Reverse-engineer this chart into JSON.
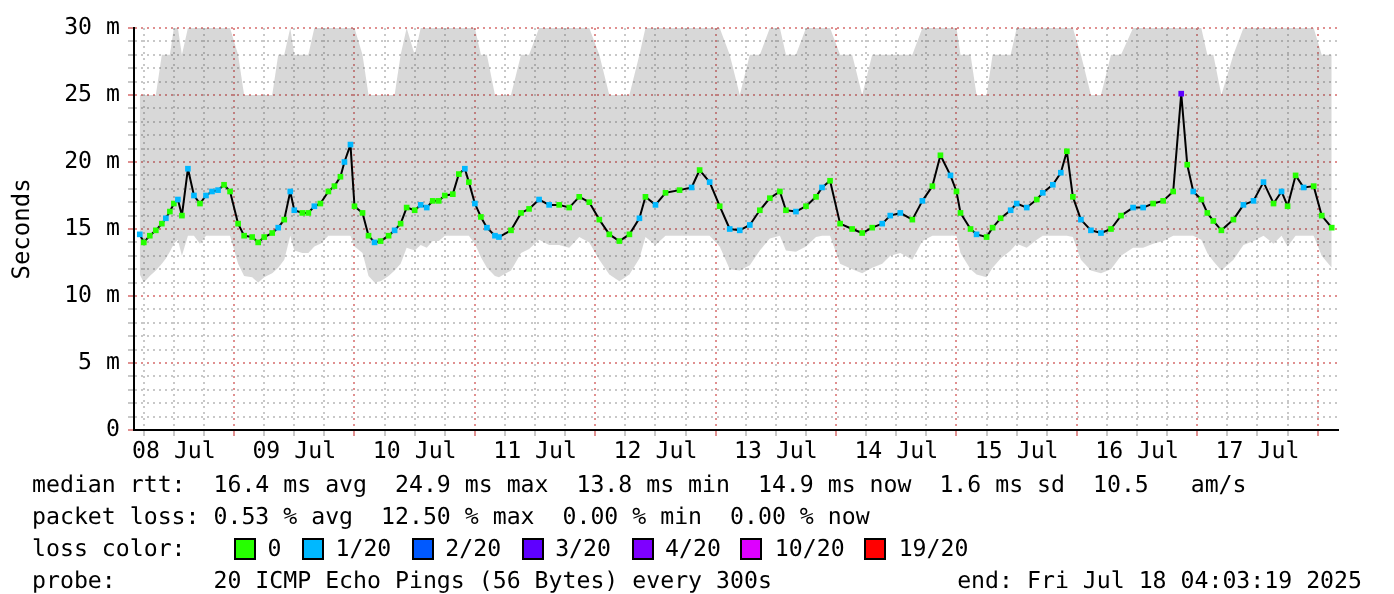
{
  "chart_data": {
    "type": "line",
    "ylabel": "Seconds",
    "legend_title": "loss color:",
    "legend": "bottom",
    "grid": true,
    "marker": "square",
    "line_style": "solid",
    "xlim": [
      "2025-07-08T04:03",
      "2025-07-18T04:03"
    ],
    "xticks": [
      {
        "value": "2025-07-08T06:00",
        "label": null
      },
      {
        "value": "2025-07-08T12:00",
        "label": "08 Jul"
      },
      {
        "value": "2025-07-08T18:00",
        "label": null
      },
      {
        "value": "2025-07-09T00:00",
        "label": null
      },
      {
        "value": "2025-07-09T06:00",
        "label": null
      },
      {
        "value": "2025-07-09T12:00",
        "label": "09 Jul"
      },
      {
        "value": "2025-07-09T18:00",
        "label": null
      },
      {
        "value": "2025-07-10T00:00",
        "label": null
      },
      {
        "value": "2025-07-10T06:00",
        "label": null
      },
      {
        "value": "2025-07-10T12:00",
        "label": "10 Jul"
      },
      {
        "value": "2025-07-10T18:00",
        "label": null
      },
      {
        "value": "2025-07-11T00:00",
        "label": null
      },
      {
        "value": "2025-07-11T06:00",
        "label": null
      },
      {
        "value": "2025-07-11T12:00",
        "label": "11 Jul"
      },
      {
        "value": "2025-07-11T18:00",
        "label": null
      },
      {
        "value": "2025-07-12T00:00",
        "label": null
      },
      {
        "value": "2025-07-12T06:00",
        "label": null
      },
      {
        "value": "2025-07-12T12:00",
        "label": "12 Jul"
      },
      {
        "value": "2025-07-12T18:00",
        "label": null
      },
      {
        "value": "2025-07-13T00:00",
        "label": null
      },
      {
        "value": "2025-07-13T06:00",
        "label": null
      },
      {
        "value": "2025-07-13T12:00",
        "label": "13 Jul"
      },
      {
        "value": "2025-07-13T18:00",
        "label": null
      },
      {
        "value": "2025-07-14T00:00",
        "label": null
      },
      {
        "value": "2025-07-14T06:00",
        "label": null
      },
      {
        "value": "2025-07-14T12:00",
        "label": "14 Jul"
      },
      {
        "value": "2025-07-14T18:00",
        "label": null
      },
      {
        "value": "2025-07-15T00:00",
        "label": null
      },
      {
        "value": "2025-07-15T06:00",
        "label": null
      },
      {
        "value": "2025-07-15T12:00",
        "label": "15 Jul"
      },
      {
        "value": "2025-07-15T18:00",
        "label": null
      },
      {
        "value": "2025-07-16T00:00",
        "label": null
      },
      {
        "value": "2025-07-16T06:00",
        "label": null
      },
      {
        "value": "2025-07-16T12:00",
        "label": "16 Jul"
      },
      {
        "value": "2025-07-16T18:00",
        "label": null
      },
      {
        "value": "2025-07-17T00:00",
        "label": null
      },
      {
        "value": "2025-07-17T06:00",
        "label": null
      },
      {
        "value": "2025-07-17T12:00",
        "label": "17 Jul"
      },
      {
        "value": "2025-07-17T18:00",
        "label": null
      },
      {
        "value": "2025-07-18T00:00",
        "label": null
      }
    ],
    "ylim": [
      0,
      30
    ],
    "yticks": [
      0,
      {
        "value": 1,
        "label": null
      },
      {
        "value": 2,
        "label": null
      },
      {
        "value": 3,
        "label": null
      },
      {
        "value": 4,
        "label": null
      },
      {
        "value": 5,
        "label": "5 m"
      },
      {
        "value": 6,
        "label": null
      },
      {
        "value": 7,
        "label": null
      },
      {
        "value": 8,
        "label": null
      },
      {
        "value": 9,
        "label": null
      },
      {
        "value": 10,
        "label": "10 m"
      },
      {
        "value": 11,
        "label": null
      },
      {
        "value": 12,
        "label": null
      },
      {
        "value": 13,
        "label": null
      },
      {
        "value": 14,
        "label": null
      },
      {
        "value": 15,
        "label": "15 m"
      },
      {
        "value": 16,
        "label": null
      },
      {
        "value": 17,
        "label": null
      },
      {
        "value": 18,
        "label": null
      },
      {
        "value": 19,
        "label": null
      },
      {
        "value": 20,
        "label": "20 m"
      },
      {
        "value": 21,
        "label": null
      },
      {
        "value": 22,
        "label": null
      },
      {
        "value": 23,
        "label": null
      },
      {
        "value": 24,
        "label": null
      },
      {
        "value": 25,
        "label": "25 m"
      },
      {
        "value": 26,
        "label": null
      },
      {
        "value": 27,
        "label": null
      },
      {
        "value": 28,
        "label": null
      },
      {
        "value": 29,
        "label": null
      },
      {
        "value": 30,
        "label": "30 m"
      }
    ],
    "annotations": [
      "median rtt:  16.4 ms avg  24.9 ms max  13.8 ms min  14.9 ms now  1.6 ms sd  10.5   am/s",
      "packet loss: 0.53 % avg  12.50 % max  0.00 % min  0.00 % now",
      "probe:       20 ICMP Echo Pings (56 Bytes) every 300s",
      "end: Fri Jul 18 04:03:19 2025"
    ],
    "series": [
      {
        "color": "#000000",
        "x": [
          "2025-07-08T05:12",
          "2025-07-08T06:00",
          "2025-07-08T07:12",
          "2025-07-08T08:24",
          "2025-07-08T09:36",
          "2025-07-08T10:24",
          "2025-07-08T11:12",
          "2025-07-08T12:00",
          "2025-07-08T12:48",
          "2025-07-08T13:36",
          "2025-07-08T14:48",
          "2025-07-08T16:00",
          "2025-07-08T17:12",
          "2025-07-08T18:24",
          "2025-07-08T19:36",
          "2025-07-08T20:48",
          "2025-07-08T22:00",
          "2025-07-08T23:12",
          "2025-07-09T00:48",
          "2025-07-09T02:00",
          "2025-07-09T03:36",
          "2025-07-09T04:48",
          "2025-07-09T06:00",
          "2025-07-09T07:36",
          "2025-07-09T08:48",
          "2025-07-09T10:00",
          "2025-07-09T11:12",
          "2025-07-09T12:00",
          "2025-07-09T13:36",
          "2025-07-09T14:48",
          "2025-07-09T16:00",
          "2025-07-09T17:12",
          "2025-07-09T18:48",
          "2025-07-09T20:00",
          "2025-07-09T21:12",
          "2025-07-09T22:00",
          "2025-07-09T23:12",
          "2025-07-10T00:00",
          "2025-07-10T01:36",
          "2025-07-10T02:48",
          "2025-07-10T04:00",
          "2025-07-10T05:12",
          "2025-07-10T06:48",
          "2025-07-10T08:00",
          "2025-07-10T09:12",
          "2025-07-10T10:24",
          "2025-07-10T12:00",
          "2025-07-10T13:12",
          "2025-07-10T14:24",
          "2025-07-10T15:36",
          "2025-07-10T16:48",
          "2025-07-10T18:00",
          "2025-07-10T19:36",
          "2025-07-10T20:48",
          "2025-07-10T22:00",
          "2025-07-10T22:48",
          "2025-07-11T00:00",
          "2025-07-11T01:12",
          "2025-07-11T02:24",
          "2025-07-11T04:00",
          "2025-07-11T04:48",
          "2025-07-11T07:12",
          "2025-07-11T09:12",
          "2025-07-11T10:48",
          "2025-07-11T12:48",
          "2025-07-11T14:48",
          "2025-07-11T16:48",
          "2025-07-11T18:48",
          "2025-07-11T20:48",
          "2025-07-11T22:48",
          "2025-07-12T00:48",
          "2025-07-12T02:48",
          "2025-07-12T04:48",
          "2025-07-12T06:48",
          "2025-07-12T08:48",
          "2025-07-12T10:00",
          "2025-07-12T12:00",
          "2025-07-12T14:00",
          "2025-07-12T16:48",
          "2025-07-12T19:12",
          "2025-07-12T20:48",
          "2025-07-12T22:48",
          "2025-07-13T00:48",
          "2025-07-13T02:48",
          "2025-07-13T04:48",
          "2025-07-13T06:48",
          "2025-07-13T08:48",
          "2025-07-13T10:48",
          "2025-07-13T12:48",
          "2025-07-13T14:00",
          "2025-07-13T16:00",
          "2025-07-13T18:00",
          "2025-07-13T20:00",
          "2025-07-13T21:12",
          "2025-07-13T22:48",
          "2025-07-14T00:48",
          "2025-07-14T03:12",
          "2025-07-14T05:12",
          "2025-07-14T07:12",
          "2025-07-14T09:12",
          "2025-07-14T10:48",
          "2025-07-14T12:48",
          "2025-07-14T15:12",
          "2025-07-14T17:12",
          "2025-07-14T19:12",
          "2025-07-14T20:48",
          "2025-07-14T22:48",
          "2025-07-15T00:00",
          "2025-07-15T00:48",
          "2025-07-15T02:48",
          "2025-07-15T04:00",
          "2025-07-15T06:00",
          "2025-07-15T07:12",
          "2025-07-15T08:48",
          "2025-07-15T10:48",
          "2025-07-15T12:00",
          "2025-07-15T14:00",
          "2025-07-15T16:00",
          "2025-07-15T17:12",
          "2025-07-15T19:12",
          "2025-07-15T20:48",
          "2025-07-15T22:00",
          "2025-07-15T23:12",
          "2025-07-16T00:48",
          "2025-07-16T02:48",
          "2025-07-16T04:48",
          "2025-07-16T06:48",
          "2025-07-16T08:48",
          "2025-07-16T11:12",
          "2025-07-16T13:12",
          "2025-07-16T15:12",
          "2025-07-16T17:12",
          "2025-07-16T19:12",
          "2025-07-16T20:48",
          "2025-07-16T22:00",
          "2025-07-16T23:12",
          "2025-07-17T00:48",
          "2025-07-17T02:00",
          "2025-07-17T03:12",
          "2025-07-17T04:48",
          "2025-07-17T07:12",
          "2025-07-17T09:12",
          "2025-07-17T11:12",
          "2025-07-17T13:12",
          "2025-07-17T15:12",
          "2025-07-17T16:48",
          "2025-07-17T18:00",
          "2025-07-17T19:36",
          "2025-07-17T21:12",
          "2025-07-17T23:12",
          "2025-07-18T00:48",
          "2025-07-18T02:48"
        ],
        "values": [
          14.6,
          14.0,
          14.5,
          14.9,
          15.4,
          15.8,
          16.3,
          16.9,
          17.2,
          16.0,
          19.5,
          17.5,
          16.9,
          17.5,
          17.8,
          17.9,
          18.3,
          17.8,
          15.4,
          14.5,
          14.4,
          14.0,
          14.4,
          14.7,
          15.1,
          15.7,
          17.8,
          16.4,
          16.2,
          16.2,
          16.7,
          16.9,
          17.8,
          18.2,
          18.9,
          20.0,
          21.3,
          16.7,
          16.2,
          14.5,
          14.0,
          14.1,
          14.5,
          14.9,
          15.4,
          16.6,
          16.4,
          16.8,
          16.6,
          17.1,
          17.1,
          17.5,
          17.6,
          19.1,
          19.5,
          18.5,
          16.9,
          15.9,
          15.1,
          14.5,
          14.4,
          14.9,
          16.2,
          16.5,
          17.2,
          16.8,
          16.8,
          16.6,
          17.4,
          17.0,
          15.7,
          14.6,
          14.1,
          14.6,
          15.8,
          17.4,
          16.8,
          17.7,
          17.9,
          18.1,
          19.4,
          18.5,
          16.7,
          15.0,
          14.9,
          15.3,
          16.4,
          17.3,
          17.8,
          16.4,
          16.3,
          16.7,
          17.4,
          18.1,
          18.6,
          15.4,
          15.0,
          14.7,
          15.1,
          15.4,
          16.0,
          16.2,
          15.7,
          17.1,
          18.2,
          20.5,
          19.0,
          17.8,
          16.2,
          15.0,
          14.6,
          14.4,
          15.1,
          15.8,
          16.4,
          16.9,
          16.6,
          17.2,
          17.7,
          18.3,
          19.2,
          20.8,
          17.4,
          15.7,
          14.9,
          14.7,
          15.0,
          16.0,
          16.6,
          16.6,
          16.9,
          17.1,
          17.8,
          25.1,
          19.8,
          17.8,
          17.2,
          16.2,
          15.6,
          14.9,
          15.7,
          16.8,
          17.1,
          18.5,
          16.9,
          17.8,
          16.7,
          19.0,
          18.1,
          18.2,
          16.0,
          15.1
        ],
        "lower": [
          11.6,
          11.0,
          11.5,
          11.9,
          12.4,
          12.8,
          13.3,
          13.9,
          14.2,
          13.0,
          14.5,
          14.5,
          13.9,
          14.5,
          14.5,
          14.5,
          14.5,
          14.5,
          12.4,
          11.5,
          11.4,
          11.0,
          11.4,
          11.7,
          12.1,
          12.7,
          14.5,
          13.4,
          13.2,
          13.2,
          13.7,
          13.9,
          14.5,
          14.5,
          14.5,
          14.5,
          14.5,
          13.7,
          13.2,
          11.5,
          11.0,
          11.1,
          11.5,
          11.9,
          12.4,
          13.6,
          13.4,
          13.8,
          13.6,
          14.1,
          14.1,
          14.5,
          14.5,
          14.5,
          14.5,
          14.5,
          13.9,
          12.9,
          12.1,
          11.5,
          11.4,
          11.9,
          13.2,
          13.5,
          14.2,
          13.8,
          13.8,
          13.6,
          14.4,
          14.0,
          12.7,
          11.6,
          11.1,
          11.6,
          12.8,
          14.4,
          13.8,
          14.5,
          14.5,
          14.5,
          14.5,
          14.5,
          13.7,
          12.0,
          11.9,
          12.3,
          13.4,
          14.3,
          14.5,
          13.4,
          13.3,
          13.7,
          14.4,
          14.5,
          14.5,
          12.4,
          12.0,
          11.7,
          12.1,
          12.4,
          13.0,
          13.2,
          12.7,
          14.1,
          14.5,
          14.5,
          14.5,
          14.5,
          13.2,
          12.0,
          11.6,
          11.4,
          12.1,
          12.8,
          13.4,
          13.9,
          13.6,
          14.2,
          14.5,
          14.5,
          14.5,
          14.5,
          14.4,
          12.7,
          11.9,
          11.7,
          12.0,
          13.0,
          13.6,
          13.6,
          13.9,
          14.1,
          14.5,
          14.5,
          14.5,
          14.5,
          14.2,
          13.2,
          12.6,
          11.9,
          12.7,
          13.8,
          14.1,
          14.5,
          13.9,
          14.5,
          13.7,
          14.5,
          14.5,
          14.5,
          13.0,
          12.1
        ],
        "upper": [
          25,
          25,
          25,
          25,
          28,
          28,
          28,
          30,
          30,
          28,
          30,
          30,
          30,
          30,
          30,
          30,
          30,
          30,
          28,
          25,
          25,
          25,
          25,
          25,
          28,
          28,
          30,
          28,
          28,
          28,
          30,
          30,
          30,
          30,
          30,
          30,
          30,
          30,
          28,
          25,
          25,
          25,
          25,
          25,
          28,
          30,
          28,
          30,
          30,
          30,
          30,
          30,
          30,
          30,
          30,
          30,
          30,
          28,
          28,
          25,
          25,
          25,
          28,
          28,
          30,
          30,
          30,
          30,
          30,
          30,
          28,
          25,
          25,
          25,
          28,
          30,
          30,
          30,
          30,
          30,
          30,
          30,
          30,
          28,
          25,
          28,
          28,
          30,
          30,
          28,
          28,
          30,
          30,
          30,
          30,
          28,
          28,
          25,
          28,
          28,
          28,
          28,
          28,
          30,
          30,
          30,
          30,
          30,
          28,
          28,
          25,
          25,
          28,
          28,
          28,
          30,
          30,
          30,
          30,
          30,
          30,
          30,
          30,
          28,
          25,
          25,
          28,
          28,
          30,
          30,
          30,
          30,
          30,
          30,
          30,
          30,
          30,
          28,
          28,
          25,
          28,
          30,
          30,
          30,
          30,
          30,
          30,
          30,
          30,
          30,
          28,
          28
        ],
        "colors": [
          "#00b8ff",
          "#26ff00",
          "#26ff00",
          "#26ff00",
          "#26ff00",
          "#00b8ff",
          "#26ff00",
          "#26ff00",
          "#00b8ff",
          "#26ff00",
          "#00b8ff",
          "#00b8ff",
          "#26ff00",
          "#00b8ff",
          "#00b8ff",
          "#00b8ff",
          "#26ff00",
          "#26ff00",
          "#26ff00",
          "#26ff00",
          "#26ff00",
          "#26ff00",
          "#26ff00",
          "#26ff00",
          "#00b8ff",
          "#26ff00",
          "#00b8ff",
          "#00b8ff",
          "#26ff00",
          "#26ff00",
          "#00b8ff",
          "#26ff00",
          "#26ff00",
          "#26ff00",
          "#26ff00",
          "#00b8ff",
          "#00b8ff",
          "#26ff00",
          "#26ff00",
          "#26ff00",
          "#00b8ff",
          "#26ff00",
          "#26ff00",
          "#00b8ff",
          "#26ff00",
          "#26ff00",
          "#26ff00",
          "#00b8ff",
          "#00b8ff",
          "#26ff00",
          "#26ff00",
          "#26ff00",
          "#26ff00",
          "#26ff00",
          "#00b8ff",
          "#26ff00",
          "#00b8ff",
          "#26ff00",
          "#00b8ff",
          "#00b8ff",
          "#00b8ff",
          "#26ff00",
          "#26ff00",
          "#26ff00",
          "#00b8ff",
          "#00b8ff",
          "#26ff00",
          "#26ff00",
          "#26ff00",
          "#26ff00",
          "#26ff00",
          "#26ff00",
          "#26ff00",
          "#26ff00",
          "#00b8ff",
          "#26ff00",
          "#00b8ff",
          "#26ff00",
          "#26ff00",
          "#00b8ff",
          "#26ff00",
          "#00b8ff",
          "#26ff00",
          "#00b8ff",
          "#00b8ff",
          "#00b8ff",
          "#26ff00",
          "#26ff00",
          "#26ff00",
          "#26ff00",
          "#00b8ff",
          "#26ff00",
          "#26ff00",
          "#00b8ff",
          "#26ff00",
          "#26ff00",
          "#26ff00",
          "#26ff00",
          "#26ff00",
          "#00b8ff",
          "#00b8ff",
          "#00b8ff",
          "#26ff00",
          "#00b8ff",
          "#26ff00",
          "#26ff00",
          "#00b8ff",
          "#26ff00",
          "#26ff00",
          "#26ff00",
          "#00b8ff",
          "#26ff00",
          "#26ff00",
          "#26ff00",
          "#00b8ff",
          "#00b8ff",
          "#00b8ff",
          "#26ff00",
          "#00b8ff",
          "#00b8ff",
          "#00b8ff",
          "#26ff00",
          "#26ff00",
          "#00b8ff",
          "#00b8ff",
          "#00b8ff",
          "#26ff00",
          "#26ff00",
          "#00b8ff",
          "#00b8ff",
          "#26ff00",
          "#26ff00",
          "#26ff00",
          "#5e00ff",
          "#26ff00",
          "#00b8ff",
          "#26ff00",
          "#26ff00",
          "#26ff00",
          "#26ff00",
          "#26ff00",
          "#00b8ff",
          "#00b8ff",
          "#00b8ff",
          "#26ff00",
          "#00b8ff",
          "#26ff00",
          "#26ff00",
          "#00b8ff",
          "#26ff00",
          "#26ff00",
          "#26ff00"
        ]
      },
      {
        "name": "0",
        "color": "#26ff00"
      },
      {
        "name": "1/20",
        "color": "#00b8ff"
      },
      {
        "name": "2/20",
        "color": "#0059ff"
      },
      {
        "name": "3/20",
        "color": "#5e00ff"
      },
      {
        "name": "4/20",
        "color": "#7e00ff"
      },
      {
        "name": "10/20",
        "color": "#dd00ff"
      },
      {
        "name": "19/20",
        "color": "#ff0000"
      }
    ]
  }
}
